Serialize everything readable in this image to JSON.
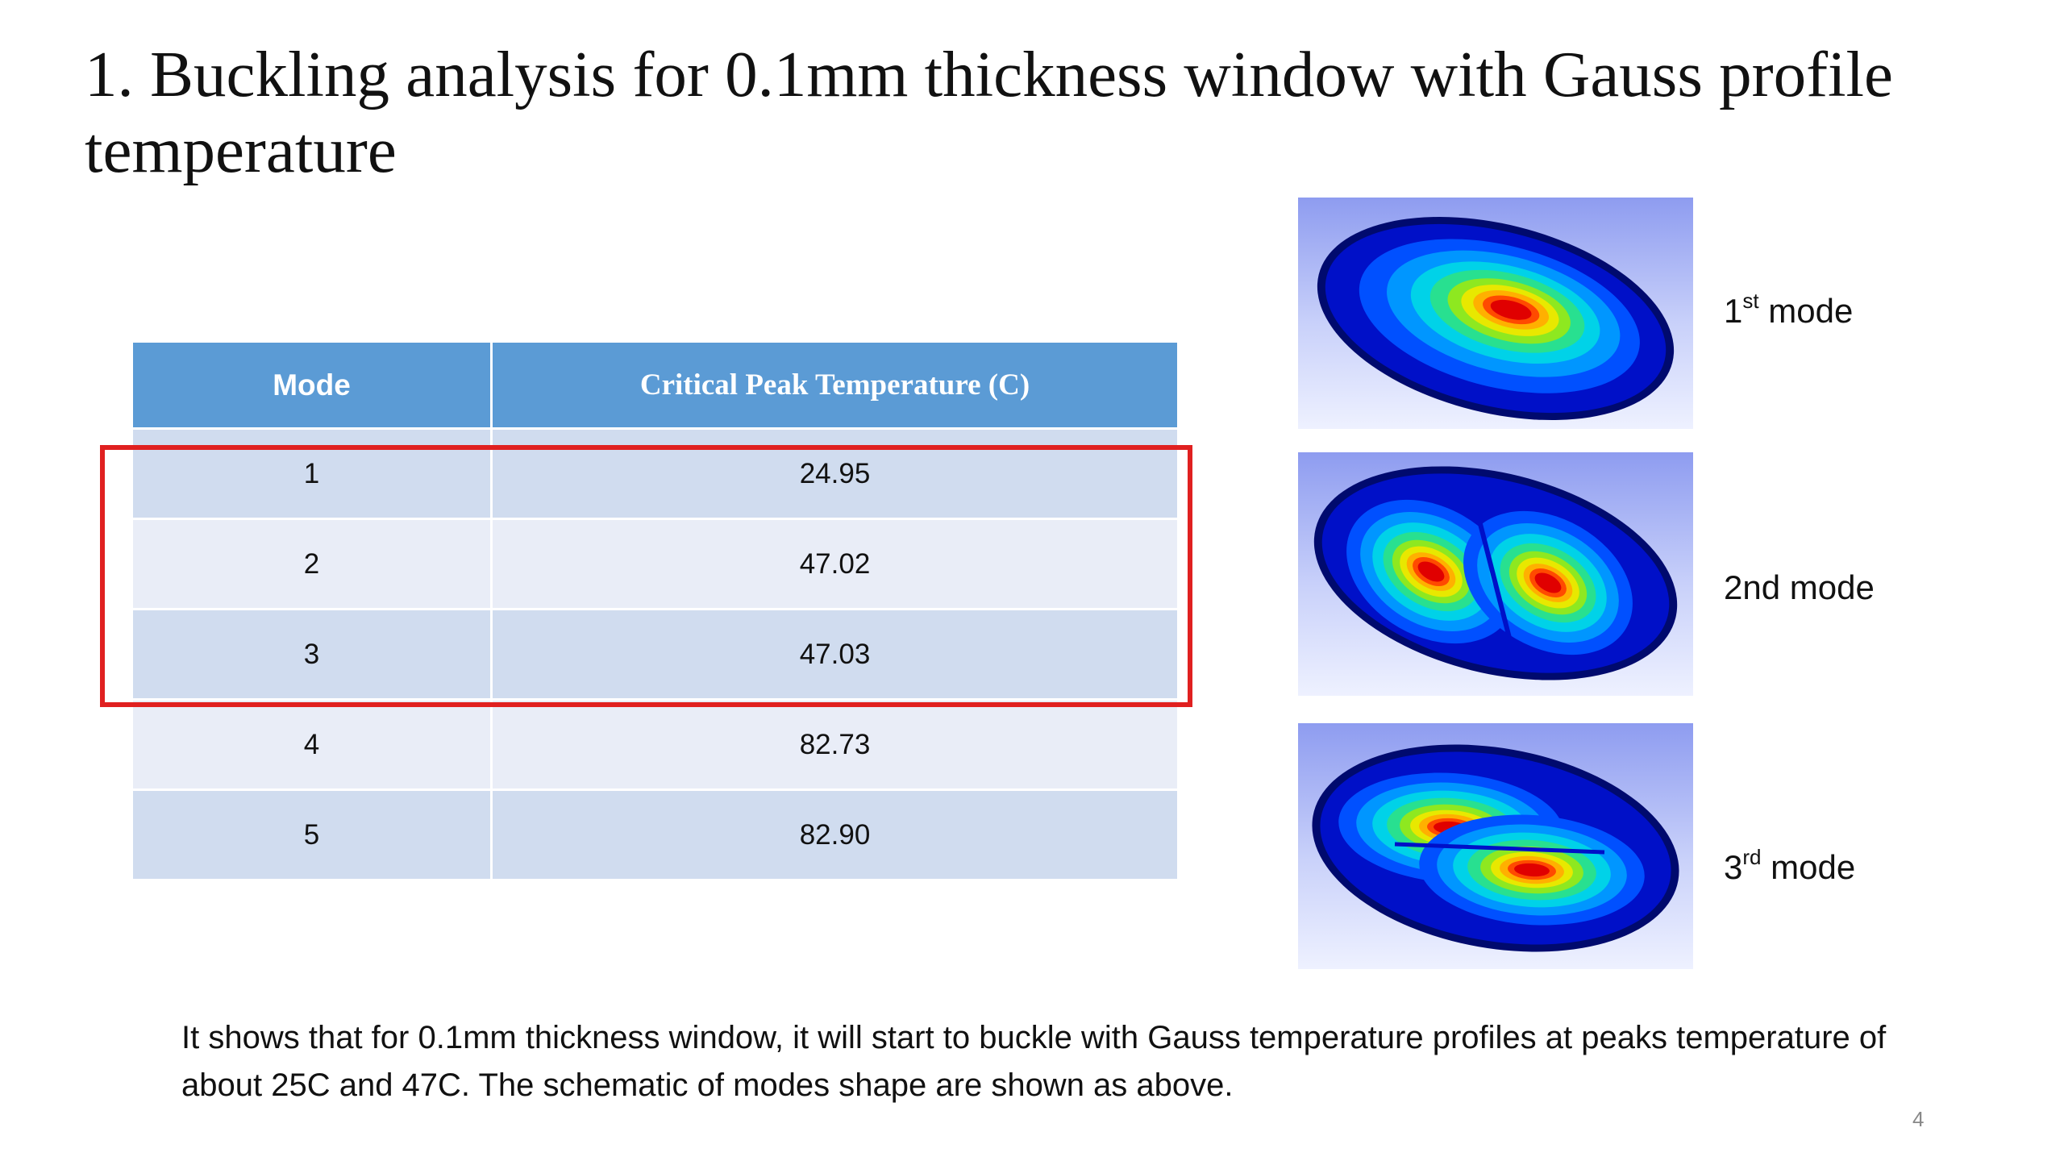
{
  "title": "1. Buckling analysis for 0.1mm thickness window with Gauss profile temperature",
  "table": {
    "headers": [
      "Mode",
      "Critical Peak Temperature (C)"
    ],
    "rows": [
      [
        "1",
        "24.95"
      ],
      [
        "2",
        "47.02"
      ],
      [
        "3",
        "47.03"
      ],
      [
        "4",
        "82.73"
      ],
      [
        "5",
        "82.90"
      ]
    ],
    "highlighted_rows": [
      1,
      2,
      3
    ],
    "highlight_color": "#e02020",
    "header_color": "#5b9bd5"
  },
  "modes": [
    {
      "prefix": "1",
      "sup": "st",
      "suffix": " mode"
    },
    {
      "prefix": "2nd",
      "sup": "",
      "suffix": " mode"
    },
    {
      "prefix": "3",
      "sup": "rd",
      "suffix": " mode"
    }
  ],
  "caption": "It shows that for 0.1mm thickness window, it will start to buckle with Gauss temperature profiles at peaks temperature of about 25C and 47C. The schematic of modes shape are shown as above.",
  "page_number": "4"
}
